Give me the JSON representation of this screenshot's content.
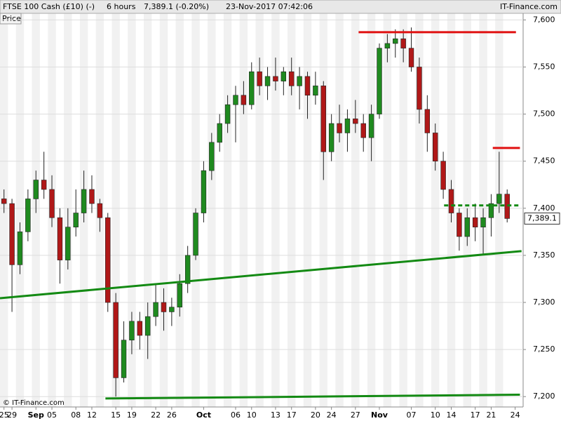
{
  "chart_data": {
    "type": "candlestick",
    "title": "FTSE 100 Cash (£10) (-)",
    "interval": "6 hours",
    "quote": "7,389.1 (-0.20%)",
    "timestamp": "23-Nov-2017 07:42:06",
    "brand": "IT-Finance.com",
    "panel_label": "Price",
    "copyright": "© IT-Finance.com",
    "up_color": "#1f8a1f",
    "down_color": "#b01818",
    "open": [
      7410,
      7405,
      7340,
      7375,
      7410,
      7430,
      7420,
      7390,
      7345,
      7380,
      7395,
      7420,
      7405,
      7390,
      7300,
      7220,
      7260,
      7280,
      7265,
      7285,
      7300,
      7290,
      7295,
      7320,
      7350,
      7395,
      7440,
      7470,
      7490,
      7510,
      7520,
      7510,
      7545,
      7530,
      7540,
      7535,
      7545,
      7530,
      7540,
      7520,
      7530,
      7460,
      7490,
      7480,
      7495,
      7490,
      7475,
      7500,
      7570,
      7575,
      7580,
      7570,
      7550,
      7505,
      7480,
      7450,
      7420,
      7395,
      7370,
      7390,
      7380,
      7390,
      7405,
      7415
    ],
    "high": [
      7420,
      7410,
      7385,
      7420,
      7440,
      7460,
      7435,
      7400,
      7400,
      7420,
      7440,
      7435,
      7410,
      7395,
      7310,
      7280,
      7290,
      7290,
      7300,
      7320,
      7315,
      7305,
      7330,
      7360,
      7400,
      7450,
      7480,
      7500,
      7520,
      7530,
      7535,
      7555,
      7560,
      7550,
      7560,
      7550,
      7560,
      7550,
      7545,
      7545,
      7535,
      7500,
      7510,
      7505,
      7515,
      7500,
      7510,
      7575,
      7585,
      7590,
      7590,
      7592,
      7560,
      7520,
      7490,
      7460,
      7430,
      7400,
      7400,
      7405,
      7400,
      7415,
      7460,
      7420
    ],
    "low": [
      7395,
      7290,
      7330,
      7365,
      7395,
      7410,
      7380,
      7320,
      7335,
      7370,
      7385,
      7395,
      7375,
      7290,
      7200,
      7215,
      7245,
      7250,
      7240,
      7275,
      7270,
      7275,
      7285,
      7310,
      7345,
      7385,
      7430,
      7460,
      7480,
      7470,
      7500,
      7505,
      7520,
      7515,
      7525,
      7520,
      7520,
      7505,
      7495,
      7510,
      7430,
      7450,
      7470,
      7460,
      7480,
      7460,
      7450,
      7495,
      7555,
      7560,
      7555,
      7545,
      7490,
      7460,
      7440,
      7410,
      7385,
      7355,
      7360,
      7365,
      7350,
      7370,
      7395,
      7385
    ],
    "close": [
      7405,
      7340,
      7375,
      7410,
      7430,
      7420,
      7390,
      7345,
      7380,
      7395,
      7420,
      7405,
      7390,
      7300,
      7220,
      7260,
      7280,
      7265,
      7285,
      7300,
      7290,
      7295,
      7320,
      7350,
      7395,
      7440,
      7470,
      7490,
      7510,
      7520,
      7510,
      7545,
      7530,
      7540,
      7535,
      7545,
      7530,
      7540,
      7520,
      7530,
      7460,
      7490,
      7480,
      7495,
      7490,
      7475,
      7500,
      7570,
      7575,
      7580,
      7570,
      7550,
      7505,
      7480,
      7450,
      7420,
      7395,
      7370,
      7390,
      7380,
      7390,
      7405,
      7415,
      7389.1
    ],
    "last_price": {
      "value": 7389.1,
      "label": "7,389.1"
    },
    "lines": [
      {
        "color": "#e01010",
        "dashed": false,
        "x": [
          44.4,
          64.1
        ],
        "y": [
          7587,
          7587
        ]
      },
      {
        "color": "#e01010",
        "dashed": false,
        "x": [
          61.2,
          64.6
        ],
        "y": [
          7464,
          7464
        ]
      },
      {
        "color": "#138a13",
        "dashed": false,
        "x": [
          -0.5,
          64.8
        ],
        "y": [
          7304.5,
          7354.5
        ]
      },
      {
        "color": "#138a13",
        "dashed": false,
        "x": [
          12.7,
          64.6
        ],
        "y": [
          7198,
          7202
        ]
      },
      {
        "color": "#138a13",
        "dashed": true,
        "x": [
          55.1,
          64.6
        ],
        "y": [
          7403,
          7403
        ]
      }
    ],
    "xlim": [
      -0.5,
      65
    ],
    "xticks": [
      {
        "value": 0,
        "label": "25"
      },
      {
        "value": 1,
        "label": "29"
      },
      {
        "value": 4,
        "label": "Sep"
      },
      {
        "value": 6,
        "label": "05"
      },
      {
        "value": 9,
        "label": "08"
      },
      {
        "value": 11,
        "label": "12"
      },
      {
        "value": 14,
        "label": "15"
      },
      {
        "value": 16,
        "label": "19"
      },
      {
        "value": 19,
        "label": "22"
      },
      {
        "value": 21,
        "label": "26"
      },
      {
        "value": 25,
        "label": "Oct"
      },
      {
        "value": 29,
        "label": "06"
      },
      {
        "value": 31,
        "label": "10"
      },
      {
        "value": 34,
        "label": "13"
      },
      {
        "value": 36,
        "label": "17"
      },
      {
        "value": 39,
        "label": "20"
      },
      {
        "value": 41,
        "label": "24"
      },
      {
        "value": 44,
        "label": "27"
      },
      {
        "value": 47,
        "label": "Nov"
      },
      {
        "value": 51,
        "label": "07"
      },
      {
        "value": 54,
        "label": "10"
      },
      {
        "value": 56,
        "label": "14"
      },
      {
        "value": 59,
        "label": "17"
      },
      {
        "value": 61,
        "label": "21"
      },
      {
        "value": 64,
        "label": "24"
      }
    ],
    "ylim": [
      7189,
      7607
    ],
    "yticks": [
      {
        "value": 7200,
        "label": "7,200"
      },
      {
        "value": 7250,
        "label": "7,250"
      },
      {
        "value": 7300,
        "label": "7,300"
      },
      {
        "value": 7350,
        "label": "7,350"
      },
      {
        "value": 7400,
        "label": "7,400"
      },
      {
        "value": 7450,
        "label": "7,450"
      },
      {
        "value": 7500,
        "label": "7,500"
      },
      {
        "value": 7550,
        "label": "7,550"
      },
      {
        "value": 7600,
        "label": "7,600"
      }
    ],
    "grid": true
  }
}
